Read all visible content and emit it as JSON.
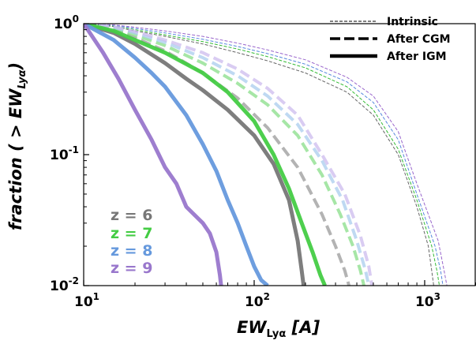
{
  "chart_data": {
    "type": "line",
    "xscale": "log",
    "yscale": "log",
    "xlim": [
      10,
      2000
    ],
    "ylim": [
      0.01,
      1.0
    ],
    "xlabel": "EW_Lyα [A]",
    "ylabel": "fraction ( > EW_Lyα)",
    "x_ticks": [
      {
        "value": 10,
        "label": "10^1"
      },
      {
        "value": 100,
        "label": "10^2"
      },
      {
        "value": 1000,
        "label": "10^3"
      }
    ],
    "y_ticks": [
      {
        "value": 1.0,
        "label": "10^0"
      },
      {
        "value": 0.1,
        "label": "10^-1"
      },
      {
        "value": 0.01,
        "label": "10^-2"
      }
    ],
    "legend_position": "top-right",
    "line_styles": [
      {
        "label": "Intrinsic",
        "style": "dotted-thin"
      },
      {
        "label": "After CGM",
        "style": "dashed-thick"
      },
      {
        "label": "After IGM",
        "style": "solid-thick"
      }
    ],
    "redshift_labels": [
      {
        "label": "z = 6",
        "color": "#777777"
      },
      {
        "label": "z = 7",
        "color": "#44cc44"
      },
      {
        "label": "z = 8",
        "color": "#6699dd"
      },
      {
        "label": "z = 9",
        "color": "#9977cc"
      }
    ],
    "series": [
      {
        "redshift": "z = 6",
        "stage": "Intrinsic",
        "color": "#666666",
        "x": [
          10,
          15,
          20,
          30,
          50,
          80,
          120,
          200,
          350,
          500,
          700,
          900,
          1050,
          1100,
          1130
        ],
        "y": [
          1.0,
          0.95,
          0.88,
          0.8,
          0.7,
          0.6,
          0.52,
          0.42,
          0.3,
          0.2,
          0.1,
          0.04,
          0.02,
          0.013,
          0.01
        ]
      },
      {
        "redshift": "z = 7",
        "stage": "Intrinsic",
        "color": "#33bb33",
        "x": [
          10,
          15,
          20,
          30,
          50,
          80,
          120,
          200,
          350,
          500,
          700,
          900,
          1100,
          1180,
          1220
        ],
        "y": [
          1.0,
          0.96,
          0.9,
          0.82,
          0.73,
          0.64,
          0.56,
          0.46,
          0.33,
          0.22,
          0.11,
          0.045,
          0.02,
          0.013,
          0.01
        ]
      },
      {
        "redshift": "z = 8",
        "stage": "Intrinsic",
        "color": "#5588dd",
        "x": [
          10,
          15,
          20,
          30,
          50,
          80,
          120,
          200,
          350,
          500,
          700,
          900,
          1150,
          1240,
          1280
        ],
        "y": [
          1.0,
          0.97,
          0.92,
          0.85,
          0.76,
          0.67,
          0.59,
          0.49,
          0.36,
          0.25,
          0.13,
          0.05,
          0.02,
          0.013,
          0.01
        ]
      },
      {
        "redshift": "z = 9",
        "stage": "Intrinsic",
        "color": "#9966cc",
        "x": [
          10,
          15,
          20,
          30,
          50,
          80,
          120,
          200,
          350,
          500,
          700,
          900,
          1200,
          1300,
          1350
        ],
        "y": [
          1.0,
          0.98,
          0.94,
          0.88,
          0.8,
          0.71,
          0.63,
          0.53,
          0.39,
          0.28,
          0.15,
          0.06,
          0.022,
          0.013,
          0.01
        ]
      },
      {
        "redshift": "z = 6",
        "stage": "After CGM",
        "color": "#999999",
        "x": [
          10,
          15,
          20,
          30,
          50,
          80,
          120,
          180,
          250,
          300,
          340,
          360
        ],
        "y": [
          1.0,
          0.9,
          0.78,
          0.62,
          0.42,
          0.27,
          0.16,
          0.08,
          0.035,
          0.02,
          0.013,
          0.01
        ]
      },
      {
        "redshift": "z = 7",
        "stage": "After CGM",
        "color": "#88dd88",
        "x": [
          10,
          15,
          20,
          30,
          50,
          80,
          120,
          180,
          250,
          320,
          380,
          420,
          440
        ],
        "y": [
          1.0,
          0.92,
          0.82,
          0.68,
          0.5,
          0.35,
          0.24,
          0.14,
          0.07,
          0.035,
          0.02,
          0.013,
          0.01
        ]
      },
      {
        "redshift": "z = 8",
        "stage": "After CGM",
        "color": "#aaccee",
        "x": [
          10,
          15,
          20,
          30,
          50,
          80,
          120,
          180,
          250,
          330,
          400,
          450,
          470
        ],
        "y": [
          1.0,
          0.94,
          0.85,
          0.72,
          0.55,
          0.4,
          0.28,
          0.17,
          0.09,
          0.045,
          0.022,
          0.013,
          0.01
        ]
      },
      {
        "redshift": "z = 9",
        "stage": "After CGM",
        "color": "#ccbbee",
        "x": [
          10,
          15,
          20,
          30,
          50,
          80,
          120,
          180,
          250,
          340,
          420,
          470,
          490
        ],
        "y": [
          1.0,
          0.95,
          0.87,
          0.75,
          0.6,
          0.45,
          0.32,
          0.2,
          0.1,
          0.05,
          0.024,
          0.014,
          0.01
        ]
      },
      {
        "redshift": "z = 6",
        "stage": "After IGM",
        "color": "#777777",
        "x": [
          10,
          15,
          20,
          30,
          40,
          50,
          70,
          100,
          130,
          160,
          180,
          190,
          195
        ],
        "y": [
          1.0,
          0.85,
          0.7,
          0.5,
          0.38,
          0.31,
          0.22,
          0.14,
          0.085,
          0.045,
          0.022,
          0.013,
          0.01
        ]
      },
      {
        "redshift": "z = 7",
        "stage": "After IGM",
        "color": "#44cc44",
        "x": [
          10,
          15,
          20,
          30,
          50,
          70,
          100,
          130,
          160,
          190,
          220,
          245,
          260
        ],
        "y": [
          1.0,
          0.88,
          0.75,
          0.6,
          0.42,
          0.3,
          0.18,
          0.1,
          0.055,
          0.03,
          0.018,
          0.012,
          0.01
        ]
      },
      {
        "redshift": "z = 8",
        "stage": "After IGM",
        "color": "#6699dd",
        "x": [
          10,
          15,
          20,
          25,
          30,
          40,
          50,
          60,
          70,
          80,
          90,
          100,
          110,
          120
        ],
        "y": [
          1.0,
          0.75,
          0.55,
          0.42,
          0.33,
          0.2,
          0.12,
          0.075,
          0.045,
          0.03,
          0.02,
          0.014,
          0.011,
          0.01
        ]
      },
      {
        "redshift": "z = 9",
        "stage": "After IGM",
        "color": "#9977cc",
        "x": [
          10,
          13,
          16,
          20,
          25,
          30,
          35,
          40,
          50,
          55,
          60,
          63,
          64
        ],
        "y": [
          1.0,
          0.6,
          0.38,
          0.22,
          0.13,
          0.08,
          0.06,
          0.04,
          0.03,
          0.025,
          0.018,
          0.012,
          0.01
        ]
      }
    ]
  }
}
